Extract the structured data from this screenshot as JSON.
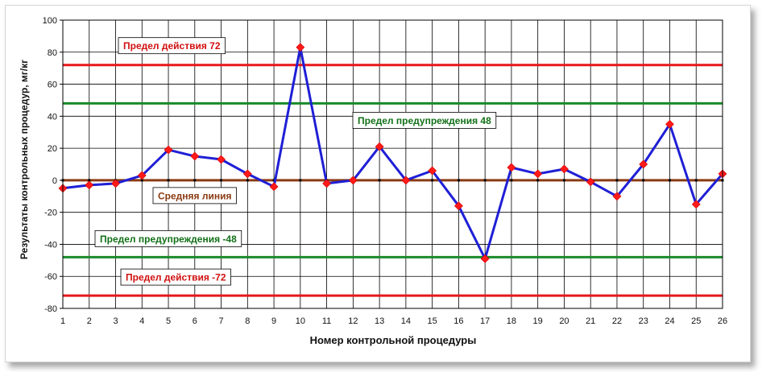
{
  "chart_data": {
    "type": "line",
    "xlabel": "Номер контрольной процедуры",
    "ylabel": "Результаты контрольных процедур, мг/кг",
    "x": [
      1,
      2,
      3,
      4,
      5,
      6,
      7,
      8,
      9,
      10,
      11,
      12,
      13,
      14,
      15,
      16,
      17,
      18,
      19,
      20,
      21,
      22,
      23,
      24,
      25,
      26
    ],
    "series": [
      {
        "values": [
          -5,
          -3,
          -2,
          3,
          19,
          15,
          13,
          4,
          -4,
          83,
          -2,
          0,
          21,
          0,
          6,
          -16,
          -49,
          8,
          4,
          7,
          -1,
          -10,
          10,
          35,
          -15,
          4
        ],
        "color": "#1f1fd6"
      }
    ],
    "ylim": [
      -80,
      100
    ],
    "yticks": [
      -80,
      -60,
      -40,
      -20,
      0,
      20,
      40,
      60,
      80,
      100
    ],
    "grid": true,
    "reference_lines": [
      {
        "value": 72,
        "label": "Предел действия 72",
        "color": "#e8171b",
        "label_color": "#d11010"
      },
      {
        "value": -72,
        "label": "Предел действия -72",
        "color": "#e8171b",
        "label_color": "#d11010"
      },
      {
        "value": 48,
        "label": "Предел предупреждения 48",
        "color": "#1a8a2a",
        "label_color": "#127018"
      },
      {
        "value": -48,
        "label": "Предел предупреждения  -48",
        "color": "#1a8a2a",
        "label_color": "#127018"
      },
      {
        "value": 0,
        "label": "Средняя линия",
        "color": "#8b3a12",
        "label_color": "#8b3a12"
      }
    ]
  }
}
